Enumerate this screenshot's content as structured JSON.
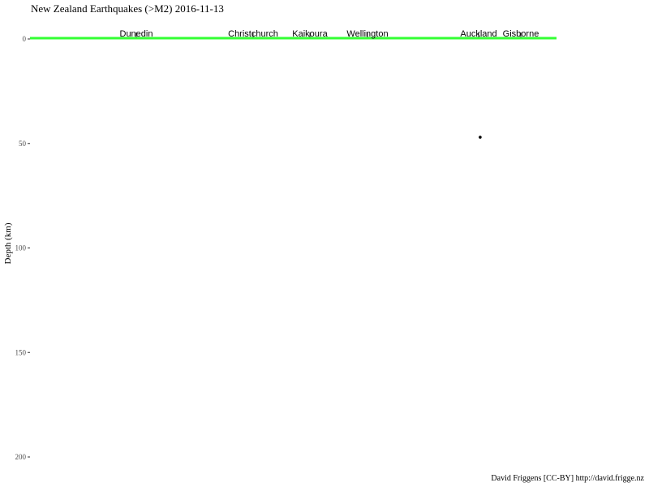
{
  "chart_data": {
    "type": "scatter",
    "title": "New Zealand Earthquakes (>M2) 2016-11-13",
    "ylabel": "Depth (km)",
    "y_reversed": true,
    "ylim": [
      0,
      200
    ],
    "yticks": [
      0,
      50,
      100,
      150,
      200
    ],
    "grid": false,
    "surface_line_color": "#33ff33",
    "point_color": "#000000",
    "cities": [
      "Dunedin",
      "Christchurch",
      "Kaikoura",
      "Wellington",
      "Auckland",
      "Gisborne"
    ],
    "points": [
      {
        "x": 0.855,
        "depth": 47
      }
    ],
    "caption": "David Friggens [CC-BY] http://david.frigge.nz"
  }
}
